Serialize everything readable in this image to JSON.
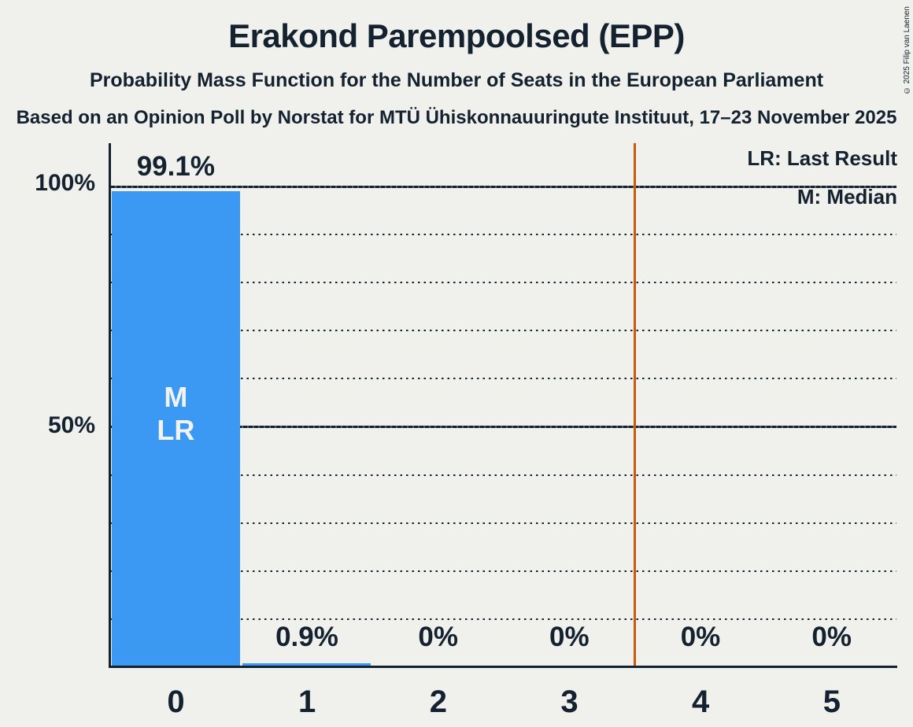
{
  "header": {
    "title": "Erakond Parempoolsed (EPP)",
    "subtitle": "Probability Mass Function for the Number of Seats in the European Parliament",
    "source_line": "Based on an Opinion Poll by Norstat for MTÜ Ühiskonnauuringute Instituut, 17–23 November 2025",
    "copyright": "© 2025 Filip van Laenen"
  },
  "legend": {
    "lr_label": "LR: Last Result",
    "m_label": "M: Median"
  },
  "y_axis": {
    "labels": [
      "100%",
      "50%"
    ]
  },
  "chart_data": {
    "type": "bar",
    "title": "Erakond Parempoolsed (EPP)",
    "subtitle": "Probability Mass Function for the Number of Seats in the European Parliament",
    "categories": [
      "0",
      "1",
      "2",
      "3",
      "4",
      "5"
    ],
    "values": [
      99.1,
      0.9,
      0,
      0,
      0,
      0
    ],
    "value_labels": [
      "99.1%",
      "0.9%",
      "0%",
      "0%",
      "0%",
      "0%"
    ],
    "xlabel": "",
    "ylabel": "",
    "ylim": [
      0,
      100
    ],
    "y_tick_labels": [
      "100%",
      "50%"
    ],
    "y_solid_gridlines": [
      100,
      50
    ],
    "y_dotted_gridlines": [
      90,
      80,
      70,
      60,
      40,
      30,
      20,
      10
    ],
    "legend_entries": [
      "LR: Last Result",
      "M: Median"
    ],
    "legend_position": "top-right",
    "median_category": "0",
    "last_result_category": "0",
    "bar_marker_labels": [
      "M",
      "LR"
    ],
    "last_result_line_between_categories": [
      "3",
      "4"
    ]
  },
  "colors": {
    "background": "#f0f0ed",
    "text": "#14212e",
    "grid_light": "#4f5d6b",
    "bar": "#3b99f4",
    "bar_marker_text": "#f2f2ef",
    "last_result_line": "#ca5a0c"
  }
}
